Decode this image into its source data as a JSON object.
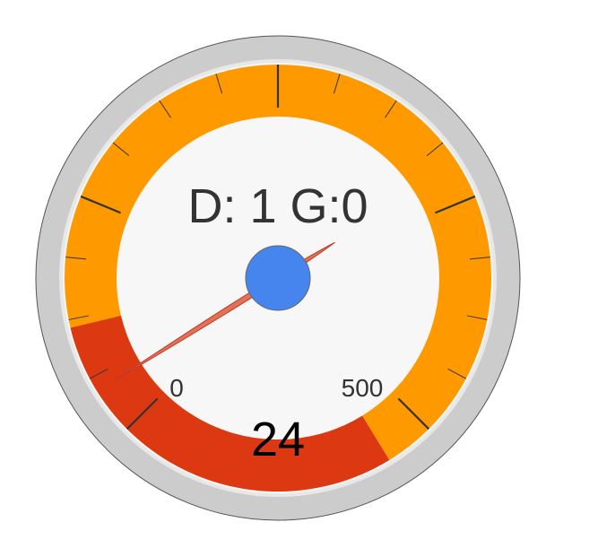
{
  "chart_data": {
    "type": "gauge",
    "label": "D: 1 G:0",
    "value": 24,
    "value_display": "24",
    "min": 0,
    "max": 500,
    "min_label": "0",
    "max_label": "500",
    "bands": [
      {
        "name": "orange",
        "from": -0.1,
        "to": 1.05,
        "color": "#ff9900"
      },
      {
        "name": "red",
        "from": 1.05,
        "to": 1.45,
        "color": "#dc3912"
      }
    ],
    "major_ticks": 5,
    "minor_ticks_per_major": 4
  },
  "colors": {
    "outer_ring": "#cccccc",
    "face": "#f7f7f7",
    "needle": "#e06a4a",
    "hub": "#4684ee",
    "tick": "#333333",
    "label_text": "#333333",
    "value_text": "#000000"
  }
}
